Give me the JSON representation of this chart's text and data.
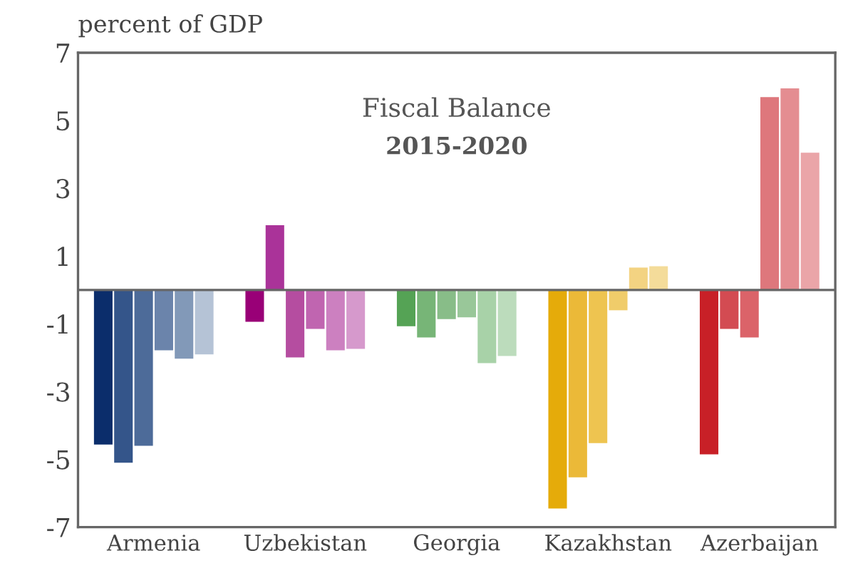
{
  "chart_data": {
    "type": "bar",
    "title": "Fiscal Balance",
    "subtitle": "2015-2020",
    "ylabel": "percent of GDP",
    "categories": [
      "Armenia",
      "Uzbekistan",
      "Georgia",
      "Kazakhstan",
      "Azerbaijan"
    ],
    "series": [
      {
        "colors": [
          "#0b2d6b",
          "#990077",
          "#55a355",
          "#e5ab0a",
          "#c82027"
        ],
        "values": [
          -4.56,
          -0.94,
          -1.07,
          -6.45,
          -4.85
        ]
      },
      {
        "colors": [
          "#34558a",
          "#aa3399",
          "#77b577",
          "#ebb938",
          "#d34b52"
        ],
        "values": [
          -5.1,
          1.91,
          -1.4,
          -5.53,
          -1.15
        ]
      },
      {
        "colors": [
          "#4d6b99",
          "#b54da0",
          "#88bd88",
          "#eec450",
          "#db6369"
        ],
        "values": [
          -4.6,
          -1.99,
          -0.86,
          -4.52,
          -1.4
        ]
      },
      {
        "colors": [
          "#6b84ab",
          "#c065b0",
          "#99c799",
          "#f0cc6a",
          "#de777c"
        ],
        "values": [
          -1.78,
          -1.15,
          -0.81,
          -0.6,
          5.69
        ]
      },
      {
        "colors": [
          "#8299b8",
          "#cc80c0",
          "#a8d2a8",
          "#f3d382",
          "#e48d91"
        ],
        "values": [
          -2.03,
          -1.78,
          -2.16,
          0.66,
          5.95
        ]
      },
      {
        "colors": [
          "#b5c3d6",
          "#d699cc",
          "#bcdcbc",
          "#f4dc9a",
          "#eaa5a8"
        ],
        "values": [
          -1.9,
          -1.74,
          -1.95,
          0.7,
          4.05
        ]
      }
    ],
    "ylim": [
      -7,
      7
    ],
    "yticks": [
      -7,
      -5,
      -3,
      -1,
      1,
      3,
      5,
      7
    ],
    "grid": false,
    "legend": false
  }
}
